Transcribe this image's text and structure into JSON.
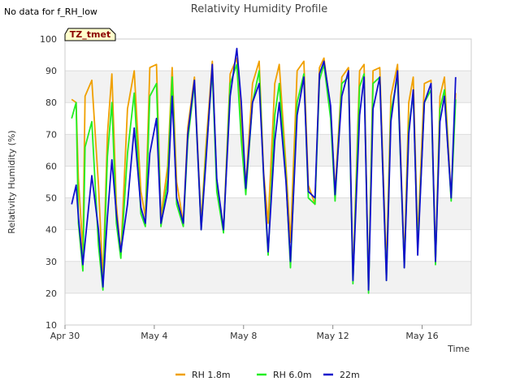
{
  "no_data_note": "No data for f_RH_low",
  "tag_label": "TZ_tmet",
  "chart_data": {
    "type": "line",
    "title": "Relativity Humidity Profile",
    "xlabel": "Time",
    "ylabel": "Relativity Humidity (%)",
    "x_unit": "days since Apr 30",
    "xlim": [
      0,
      18.2
    ],
    "ylim": [
      10,
      100
    ],
    "y_ticks": [
      10,
      20,
      30,
      40,
      50,
      60,
      70,
      80,
      90,
      100
    ],
    "x_ticks": [
      {
        "value": 0,
        "label": "Apr 30"
      },
      {
        "value": 4,
        "label": "May 4"
      },
      {
        "value": 8,
        "label": "May 8"
      },
      {
        "value": 12,
        "label": "May 12"
      },
      {
        "value": 16,
        "label": "May 16"
      }
    ],
    "grid": true,
    "legend_position": "bottom",
    "series": [
      {
        "name": "RH 1.8m",
        "color": "#f0a000",
        "x": [
          0.3,
          0.5,
          0.6,
          0.8,
          0.9,
          1.2,
          1.5,
          1.7,
          1.9,
          2.1,
          2.3,
          2.5,
          2.8,
          3.1,
          3.4,
          3.6,
          3.8,
          4.1,
          4.3,
          4.6,
          4.8,
          5.0,
          5.3,
          5.5,
          5.8,
          6.1,
          6.3,
          6.6,
          6.8,
          7.1,
          7.4,
          7.7,
          7.9,
          8.1,
          8.4,
          8.7,
          8.9,
          9.1,
          9.4,
          9.6,
          9.9,
          10.1,
          10.4,
          10.7,
          10.9,
          11.2,
          11.4,
          11.6,
          11.9,
          12.1,
          12.4,
          12.7,
          12.9,
          13.2,
          13.4,
          13.6,
          13.8,
          14.1,
          14.4,
          14.6,
          14.9,
          15.2,
          15.4,
          15.6,
          15.8,
          16.1,
          16.4,
          16.6,
          16.8,
          17.0,
          17.3,
          17.5
        ],
        "y": [
          81,
          80,
          56,
          33,
          82,
          87,
          54,
          24,
          70,
          89,
          48,
          32,
          78,
          90,
          52,
          44,
          91,
          92,
          44,
          60,
          91,
          55,
          42,
          72,
          88,
          42,
          65,
          93,
          55,
          40,
          89,
          94,
          73,
          54,
          86,
          93,
          58,
          42,
          86,
          92,
          60,
          36,
          90,
          93,
          54,
          48,
          91,
          94,
          78,
          52,
          88,
          91,
          25,
          90,
          92,
          22,
          90,
          91,
          28,
          82,
          92,
          30,
          80,
          88,
          37,
          86,
          87,
          30,
          82,
          88,
          50,
          83
        ]
      },
      {
        "name": "RH 6.0m",
        "color": "#22ee22",
        "x": [
          0.3,
          0.5,
          0.6,
          0.8,
          0.9,
          1.2,
          1.5,
          1.7,
          1.9,
          2.1,
          2.3,
          2.5,
          2.8,
          3.1,
          3.4,
          3.6,
          3.8,
          4.1,
          4.3,
          4.6,
          4.8,
          5.0,
          5.3,
          5.5,
          5.8,
          6.1,
          6.3,
          6.6,
          6.8,
          7.1,
          7.4,
          7.7,
          7.9,
          8.1,
          8.4,
          8.7,
          8.9,
          9.1,
          9.4,
          9.6,
          9.9,
          10.1,
          10.4,
          10.7,
          10.9,
          11.2,
          11.4,
          11.6,
          11.9,
          12.1,
          12.4,
          12.7,
          12.9,
          13.2,
          13.4,
          13.6,
          13.8,
          14.1,
          14.4,
          14.6,
          14.9,
          15.2,
          15.4,
          15.6,
          15.8,
          16.1,
          16.4,
          16.6,
          16.8,
          17.0,
          17.3,
          17.5
        ],
        "y": [
          75,
          80,
          42,
          27,
          66,
          74,
          35,
          21,
          63,
          80,
          42,
          31,
          64,
          83,
          45,
          41,
          82,
          86,
          41,
          56,
          88,
          48,
          41,
          68,
          86,
          40,
          62,
          90,
          52,
          39,
          86,
          92,
          68,
          51,
          80,
          90,
          56,
          32,
          76,
          86,
          56,
          28,
          80,
          89,
          50,
          48,
          87,
          92,
          75,
          49,
          86,
          88,
          23,
          85,
          89,
          20,
          86,
          88,
          24,
          77,
          88,
          28,
          72,
          83,
          34,
          80,
          84,
          29,
          78,
          84,
          49,
          81
        ]
      },
      {
        "name": "22m",
        "color": "#1010cc",
        "x": [
          0.3,
          0.5,
          0.6,
          0.8,
          0.9,
          1.2,
          1.5,
          1.7,
          1.9,
          2.1,
          2.3,
          2.5,
          2.8,
          3.1,
          3.4,
          3.6,
          3.8,
          4.1,
          4.3,
          4.6,
          4.8,
          5.0,
          5.3,
          5.5,
          5.8,
          6.1,
          6.3,
          6.6,
          6.8,
          7.1,
          7.4,
          7.7,
          7.9,
          8.1,
          8.4,
          8.7,
          8.9,
          9.1,
          9.4,
          9.6,
          9.9,
          10.1,
          10.4,
          10.7,
          10.9,
          11.2,
          11.4,
          11.6,
          11.9,
          12.1,
          12.4,
          12.7,
          12.9,
          13.2,
          13.4,
          13.6,
          13.8,
          14.1,
          14.4,
          14.6,
          14.9,
          15.2,
          15.4,
          15.6,
          15.8,
          16.1,
          16.4,
          16.6,
          16.8,
          17.0,
          17.3,
          17.5
        ],
        "y": [
          48,
          54,
          44,
          29,
          36,
          57,
          40,
          22,
          44,
          62,
          45,
          33,
          48,
          72,
          47,
          42,
          64,
          75,
          42,
          52,
          82,
          50,
          42,
          70,
          87,
          40,
          60,
          92,
          56,
          40,
          82,
          97,
          80,
          53,
          80,
          86,
          57,
          33,
          68,
          80,
          55,
          30,
          76,
          88,
          52,
          50,
          89,
          93,
          79,
          51,
          82,
          90,
          24,
          76,
          88,
          21,
          78,
          88,
          24,
          74,
          90,
          28,
          70,
          84,
          32,
          80,
          86,
          30,
          74,
          82,
          50,
          88
        ]
      }
    ]
  }
}
